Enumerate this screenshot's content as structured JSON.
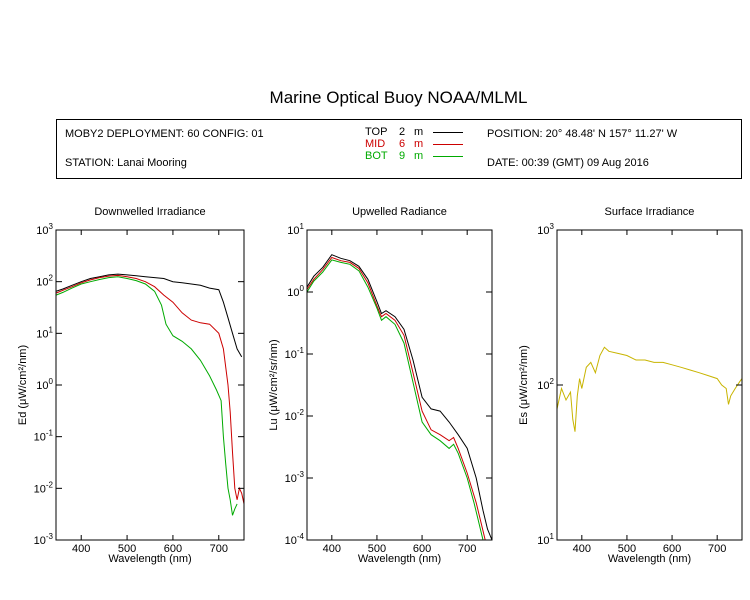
{
  "title": "Marine Optical Buoy NOAA/MLML",
  "info": {
    "deployment": "MOBY2 DEPLOYMENT: 60 CONFIG: 01",
    "station": "STATION: Lanai Mooring",
    "position": "POSITION: 20° 48.48' N   157° 11.27' W",
    "date": "DATE: 00:39 (GMT) 09 Aug 2016"
  },
  "legend": [
    {
      "name": "TOP",
      "depth": "2",
      "unit": "m",
      "color": "#000000"
    },
    {
      "name": "MID",
      "depth": "6",
      "unit": "m",
      "color": "#cc0000"
    },
    {
      "name": "BOT",
      "depth": "9",
      "unit": "m",
      "color": "#00aa00"
    }
  ],
  "chart_data": [
    {
      "type": "line",
      "title": "Downwelled Irradiance",
      "xlabel": "Wavelength (nm)",
      "ylabel": "Ed  (μW/cm²/nm)",
      "xlim": [
        345,
        755
      ],
      "ylim": [
        0.001,
        1000
      ],
      "yscale": "log",
      "xticks": [
        400,
        500,
        600,
        700
      ],
      "yticks": [
        {
          "base": "10",
          "exp": "-3"
        },
        {
          "base": "10",
          "exp": "-2"
        },
        {
          "base": "10",
          "exp": "-1"
        },
        {
          "base": "10",
          "exp": "0"
        },
        {
          "base": "10",
          "exp": "1"
        },
        {
          "base": "10",
          "exp": "2"
        },
        {
          "base": "10",
          "exp": "3"
        }
      ],
      "series": [
        {
          "name": "TOP",
          "color": "#000000",
          "x": [
            345,
            360,
            380,
            400,
            420,
            440,
            460,
            480,
            500,
            520,
            540,
            560,
            580,
            600,
            620,
            640,
            660,
            680,
            700,
            710,
            720,
            730,
            740,
            750
          ],
          "y": [
            65,
            72,
            85,
            100,
            115,
            125,
            135,
            140,
            135,
            130,
            125,
            120,
            115,
            100,
            95,
            90,
            85,
            75,
            70,
            40,
            20,
            10,
            5,
            3.5
          ]
        },
        {
          "name": "MID",
          "color": "#cc0000",
          "x": [
            345,
            360,
            380,
            400,
            420,
            440,
            460,
            480,
            500,
            520,
            540,
            560,
            580,
            600,
            620,
            640,
            660,
            680,
            700,
            710,
            720,
            725,
            730,
            735,
            740,
            745,
            750,
            755
          ],
          "y": [
            60,
            68,
            80,
            95,
            108,
            120,
            128,
            132,
            125,
            115,
            100,
            80,
            55,
            40,
            25,
            18,
            16,
            15,
            10,
            5,
            1,
            0.3,
            0.05,
            0.01,
            0.006,
            0.01,
            0.008,
            0.005
          ]
        },
        {
          "name": "BOT",
          "color": "#00aa00",
          "x": [
            345,
            360,
            380,
            400,
            420,
            440,
            460,
            480,
            500,
            520,
            540,
            560,
            575,
            585,
            600,
            620,
            640,
            660,
            680,
            695,
            705,
            710,
            715,
            720,
            725,
            730,
            735,
            740
          ],
          "y": [
            55,
            62,
            75,
            90,
            100,
            110,
            120,
            125,
            115,
            105,
            90,
            65,
            35,
            15,
            9,
            7,
            5,
            3,
            1.5,
            0.8,
            0.5,
            0.1,
            0.03,
            0.01,
            0.006,
            0.003,
            0.004,
            0.005
          ]
        }
      ]
    },
    {
      "type": "line",
      "title": "Upwelled Radiance",
      "xlabel": "Wavelength (nm)",
      "ylabel": "Lu  (μW/cm²/sr/nm)",
      "xlim": [
        345,
        755
      ],
      "ylim": [
        0.0001,
        10
      ],
      "yscale": "log",
      "xticks": [
        400,
        500,
        600,
        700
      ],
      "yticks": [
        {
          "base": "10",
          "exp": "-4"
        },
        {
          "base": "10",
          "exp": "-3"
        },
        {
          "base": "10",
          "exp": "-2"
        },
        {
          "base": "10",
          "exp": "-1"
        },
        {
          "base": "10",
          "exp": "0"
        },
        {
          "base": "10",
          "exp": "1"
        }
      ],
      "series": [
        {
          "name": "TOP",
          "color": "#000000",
          "x": [
            345,
            360,
            380,
            400,
            420,
            440,
            460,
            480,
            500,
            510,
            520,
            540,
            560,
            580,
            600,
            620,
            640,
            660,
            680,
            700,
            720,
            735,
            745,
            755
          ],
          "y": [
            1.2,
            1.8,
            2.5,
            4,
            3.5,
            3.2,
            2.6,
            1.6,
            0.7,
            0.45,
            0.5,
            0.4,
            0.25,
            0.08,
            0.02,
            0.013,
            0.012,
            0.008,
            0.005,
            0.003,
            0.001,
            0.0003,
            0.00015,
            0.0001
          ]
        },
        {
          "name": "MID",
          "color": "#cc0000",
          "x": [
            345,
            360,
            380,
            400,
            420,
            440,
            460,
            480,
            500,
            510,
            520,
            540,
            560,
            580,
            600,
            620,
            640,
            660,
            670,
            680,
            700,
            720,
            730,
            740
          ],
          "y": [
            1.1,
            1.6,
            2.3,
            3.6,
            3.2,
            3,
            2.4,
            1.4,
            0.6,
            0.4,
            0.45,
            0.35,
            0.2,
            0.05,
            0.012,
            0.006,
            0.005,
            0.004,
            0.0045,
            0.003,
            0.0012,
            0.0004,
            0.0002,
            0.0001
          ]
        },
        {
          "name": "BOT",
          "color": "#00aa00",
          "x": [
            345,
            360,
            380,
            400,
            420,
            440,
            460,
            480,
            500,
            510,
            520,
            540,
            560,
            580,
            600,
            620,
            640,
            660,
            670,
            680,
            700,
            715,
            725,
            735
          ],
          "y": [
            1,
            1.5,
            2.1,
            3.3,
            3,
            2.8,
            2.2,
            1.2,
            0.55,
            0.35,
            0.4,
            0.3,
            0.15,
            0.035,
            0.008,
            0.005,
            0.004,
            0.003,
            0.0035,
            0.0025,
            0.001,
            0.0004,
            0.0002,
            0.0001
          ]
        }
      ]
    },
    {
      "type": "line",
      "title": "Surface Irradiance",
      "xlabel": "Wavelength (nm)",
      "ylabel": "Es  (μW/cm²/nm)",
      "xlim": [
        345,
        755
      ],
      "ylim": [
        10,
        1000
      ],
      "yscale": "log",
      "xticks": [
        400,
        500,
        600,
        700
      ],
      "yticks": [
        {
          "base": "10",
          "exp": "1"
        },
        {
          "base": "10",
          "exp": "2"
        },
        {
          "base": "10",
          "exp": "3"
        }
      ],
      "series": [
        {
          "name": "Es",
          "color": "#c8b400",
          "x": [
            345,
            355,
            365,
            375,
            380,
            385,
            390,
            395,
            400,
            410,
            420,
            430,
            440,
            450,
            460,
            480,
            500,
            520,
            540,
            560,
            580,
            600,
            620,
            640,
            660,
            680,
            700,
            710,
            720,
            725,
            730,
            740,
            750,
            755
          ],
          "y": [
            70,
            95,
            80,
            90,
            60,
            50,
            85,
            110,
            95,
            130,
            140,
            120,
            155,
            175,
            165,
            160,
            155,
            145,
            145,
            140,
            140,
            135,
            130,
            125,
            120,
            115,
            110,
            100,
            95,
            75,
            85,
            95,
            105,
            110
          ]
        }
      ]
    }
  ]
}
